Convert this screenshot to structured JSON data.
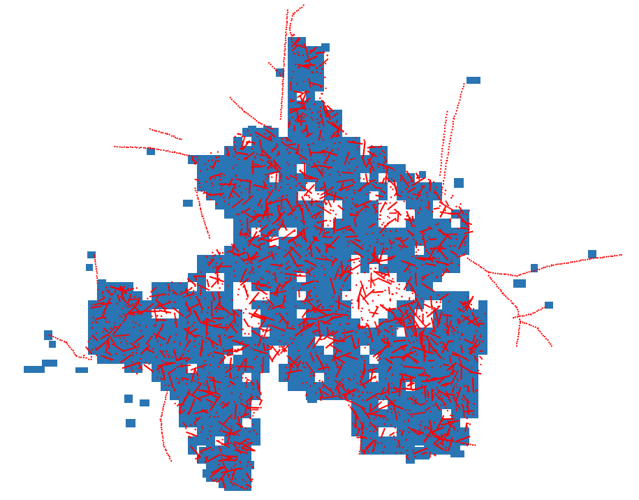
{
  "map": {
    "cell_color": "#2a75b3",
    "point_color": "#ff0000",
    "background": "#ffffff",
    "layers": [
      "grid-cells",
      "road-points"
    ]
  }
}
